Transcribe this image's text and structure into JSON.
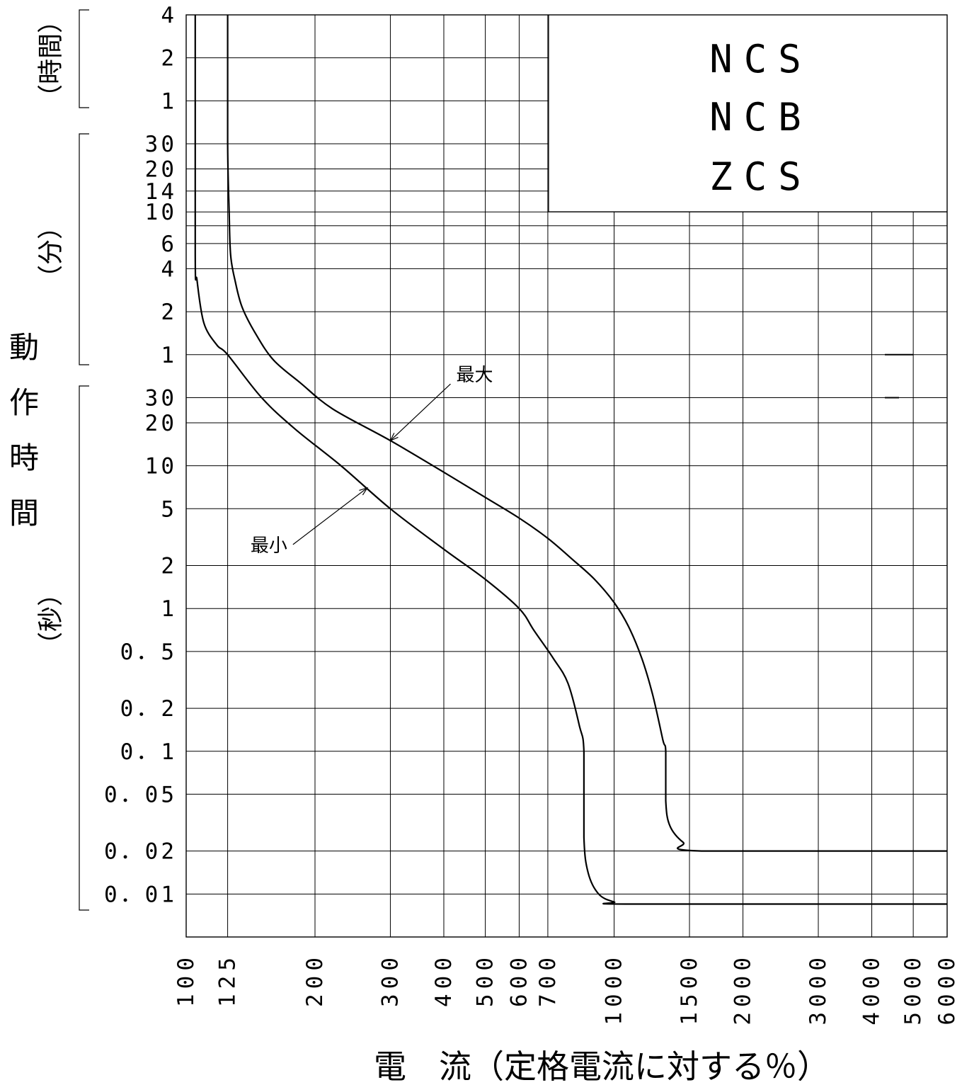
{
  "chart_data": {
    "type": "line",
    "title_lines": [
      "NCS",
      "NCB",
      "ZCS"
    ],
    "xlabel": "電　流（定格電流に対する％）",
    "ylabel": "動作時間",
    "unit_groups": {
      "hours": "（時間）",
      "minutes": "（分）",
      "seconds": "（秒）"
    },
    "x_scale": "log",
    "y_scale": "log",
    "xlim": [
      100,
      6000
    ],
    "ylim_seconds": [
      0.005,
      14400
    ],
    "x_ticks": [
      {
        "value": 100,
        "label": "100"
      },
      {
        "value": 125,
        "label": "125"
      },
      {
        "value": 200,
        "label": "200"
      },
      {
        "value": 300,
        "label": "300"
      },
      {
        "value": 400,
        "label": "400"
      },
      {
        "value": 500,
        "label": "500"
      },
      {
        "value": 600,
        "label": "600"
      },
      {
        "value": 700,
        "label": "700"
      },
      {
        "value": 1000,
        "label": "1000"
      },
      {
        "value": 1500,
        "label": "1500"
      },
      {
        "value": 2000,
        "label": "2000"
      },
      {
        "value": 3000,
        "label": "3000"
      },
      {
        "value": 4000,
        "label": "4000"
      },
      {
        "value": 5000,
        "label": "5000"
      },
      {
        "value": 6000,
        "label": "6000"
      }
    ],
    "y_ticks": [
      {
        "seconds": 14400,
        "label": "4"
      },
      {
        "seconds": 7200,
        "label": "2"
      },
      {
        "seconds": 3600,
        "label": "1"
      },
      {
        "seconds": 1800,
        "label": "30"
      },
      {
        "seconds": 1200,
        "label": "20"
      },
      {
        "seconds": 840,
        "label": "14"
      },
      {
        "seconds": 600,
        "label": "10"
      },
      {
        "seconds": 360,
        "label": "6"
      },
      {
        "seconds": 240,
        "label": "4"
      },
      {
        "seconds": 120,
        "label": "2"
      },
      {
        "seconds": 60,
        "label": "1"
      },
      {
        "seconds": 30,
        "label": "30"
      },
      {
        "seconds": 20,
        "label": "20"
      },
      {
        "seconds": 10,
        "label": "10"
      },
      {
        "seconds": 5,
        "label": "5"
      },
      {
        "seconds": 2,
        "label": "2"
      },
      {
        "seconds": 1,
        "label": "1"
      },
      {
        "seconds": 0.5,
        "label": "0．5"
      },
      {
        "seconds": 0.2,
        "label": "0．2"
      },
      {
        "seconds": 0.1,
        "label": "0．1"
      },
      {
        "seconds": 0.05,
        "label": "0．05"
      },
      {
        "seconds": 0.02,
        "label": "0．02"
      },
      {
        "seconds": 0.01,
        "label": "0．01"
      }
    ],
    "minor_gridlines_seconds": [
      480
    ],
    "series": [
      {
        "name": "最大",
        "points": [
          [
            125,
            14400
          ],
          [
            125,
            1800
          ],
          [
            126,
            600
          ],
          [
            127,
            300
          ],
          [
            130,
            200
          ],
          [
            135,
            130
          ],
          [
            145,
            85
          ],
          [
            160,
            55
          ],
          [
            185,
            38
          ],
          [
            220,
            25
          ],
          [
            300,
            15
          ],
          [
            400,
            9
          ],
          [
            500,
            6
          ],
          [
            600,
            4.3
          ],
          [
            700,
            3.1
          ],
          [
            800,
            2.2
          ],
          [
            900,
            1.6
          ],
          [
            1000,
            1.1
          ],
          [
            1080,
            0.75
          ],
          [
            1160,
            0.45
          ],
          [
            1230,
            0.25
          ],
          [
            1300,
            0.12
          ],
          [
            1320,
            0.1
          ],
          [
            1320,
            0.045
          ],
          [
            1350,
            0.03
          ],
          [
            1450,
            0.023
          ],
          [
            1600,
            0.02
          ],
          [
            6000,
            0.02
          ]
        ]
      },
      {
        "name": "最小",
        "points": [
          [
            105,
            14400
          ],
          [
            105,
            300
          ],
          [
            106,
            200
          ],
          [
            110,
            100
          ],
          [
            118,
            70
          ],
          [
            125,
            60
          ],
          [
            150,
            30
          ],
          [
            180,
            18
          ],
          [
            230,
            10
          ],
          [
            300,
            5
          ],
          [
            400,
            2.6
          ],
          [
            500,
            1.6
          ],
          [
            600,
            1.0
          ],
          [
            650,
            0.7
          ],
          [
            720,
            0.45
          ],
          [
            780,
            0.3
          ],
          [
            830,
            0.15
          ],
          [
            850,
            0.1
          ],
          [
            850,
            0.025
          ],
          [
            870,
            0.014
          ],
          [
            920,
            0.01
          ],
          [
            1000,
            0.0088
          ],
          [
            1100,
            0.0085
          ],
          [
            6000,
            0.0085
          ]
        ]
      }
    ],
    "annotations": [
      {
        "text": "最大",
        "point_x": 300,
        "point_y_seconds": 15
      },
      {
        "text": "最小",
        "point_x": 265,
        "point_y_seconds": 7
      }
    ],
    "grid": true,
    "legend": "none"
  }
}
